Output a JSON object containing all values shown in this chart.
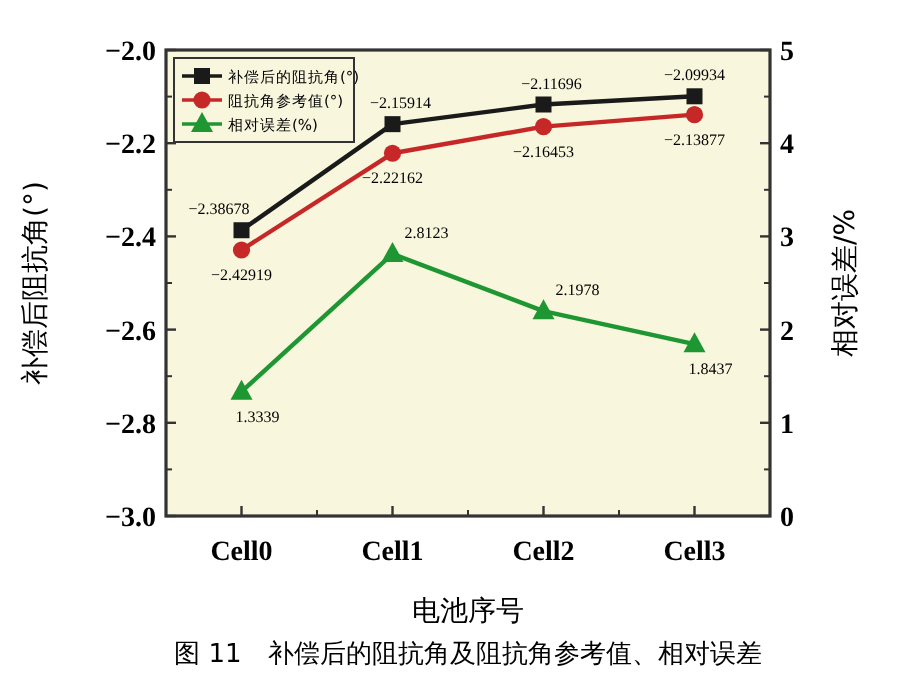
{
  "chart_data": {
    "type": "line",
    "categories": [
      "Cell0",
      "Cell1",
      "Cell2",
      "Cell3"
    ],
    "xlabel": "电池序号",
    "ylabel": "补偿后阻抗角(°)",
    "y2label": "相对误差/%",
    "ylim": [
      -3.0,
      -2.0
    ],
    "yticks": [
      {
        "value": -3.0,
        "label": "−3.0"
      },
      {
        "value": -2.8,
        "label": "−2.8"
      },
      {
        "value": -2.6,
        "label": "−2.6"
      },
      {
        "value": -2.4,
        "label": "−2.4"
      },
      {
        "value": -2.2,
        "label": "−2.2"
      },
      {
        "value": -2.0,
        "label": "−2.0"
      }
    ],
    "y2lim": [
      0,
      5
    ],
    "y2ticks": [
      0,
      1,
      2,
      3,
      4,
      5
    ],
    "legend": "top left",
    "annotations": [
      "图 11　补偿后的阻抗角及阻抗角参考值、相对误差"
    ],
    "series": [
      {
        "name": "补偿后的阻抗角(°)",
        "color": "#1a1a1a",
        "marker": "square",
        "values": [
          -2.38678,
          -2.15914,
          -2.11696,
          -2.09934
        ],
        "value_labels": [
          "−2.38678",
          "−2.15914",
          "−2.11696",
          "−2.09934"
        ]
      },
      {
        "name": "阻抗角参考值(°)",
        "color": "#c62828",
        "marker": "circle",
        "values": [
          -2.42919,
          -2.22162,
          -2.16453,
          -2.13877
        ],
        "value_labels": [
          "−2.42919",
          "−2.22162",
          "−2.16453",
          "−2.13877"
        ]
      },
      {
        "name": "相对误差(%)",
        "color": "#1e9632",
        "marker": "triangle",
        "axis": "y2",
        "values": [
          1.3339,
          2.8123,
          2.1978,
          1.8437
        ],
        "value_labels": [
          "1.3339",
          "2.8123",
          "2.1978",
          "1.8437"
        ]
      }
    ]
  }
}
